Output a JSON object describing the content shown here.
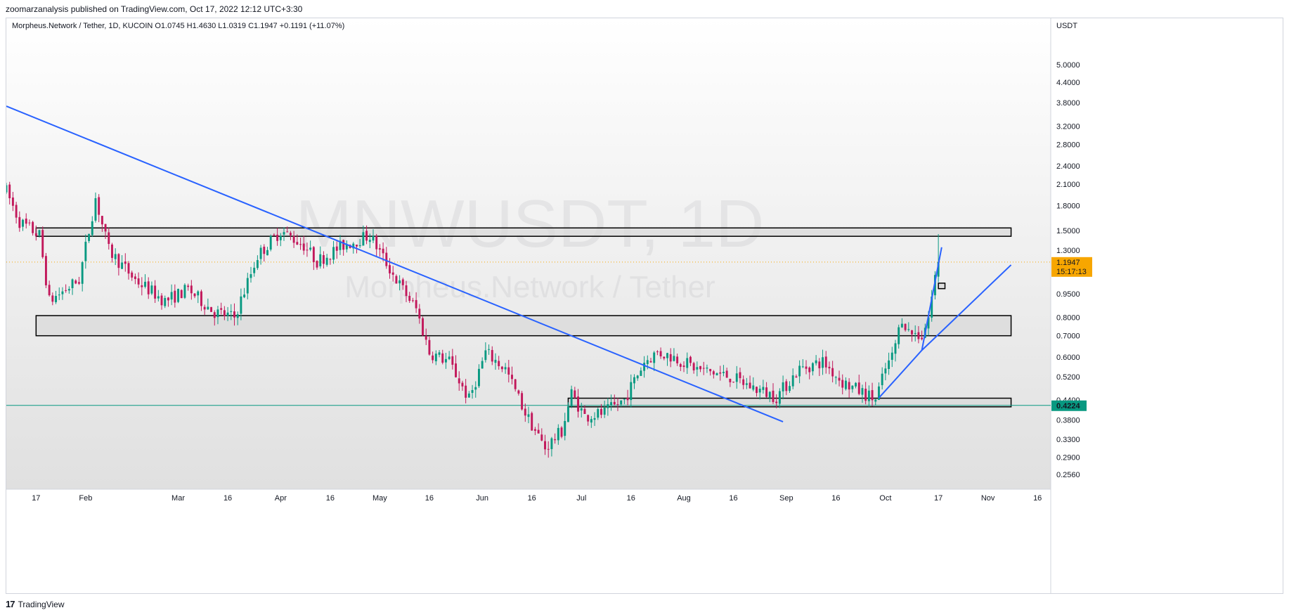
{
  "header": {
    "text": "zoomarzanalysis published on TradingView.com, Oct 17, 2022 12:12 UTC+3:30"
  },
  "legend": {
    "text": "Morpheus.Network / Tether, 1D, KUCOIN  O1.0745  H1.4630  L1.0319  C1.1947  +0.1191 (+11.07%)"
  },
  "watermark": {
    "symbol": "MNWUSDT, 1D",
    "name": "Morpheus.Network / Tether"
  },
  "footer": {
    "logo": "17",
    "brand": "TradingView"
  },
  "price_tags": {
    "last": {
      "value": "1.1947",
      "countdown": "15:17:13",
      "color": "#f7a600"
    },
    "line": {
      "value": "0.4224",
      "color": "#089981"
    }
  },
  "colors": {
    "up": "#089981",
    "down": "#c2185b",
    "trendline": "#2962ff",
    "zone_fill": "#d9d9d9"
  },
  "chart_data": {
    "type": "candlestick",
    "currency": "USDT",
    "scale": "log",
    "ylim": [
      0.23,
      7.0
    ],
    "y_ticks": [
      5.0,
      4.4,
      3.8,
      3.2,
      2.8,
      2.4,
      2.1,
      1.8,
      1.5,
      1.3,
      0.95,
      0.8,
      0.7,
      0.6,
      0.52,
      0.44,
      0.38,
      0.33,
      0.29,
      0.256
    ],
    "y_tick_labels": [
      "5.0000",
      "4.4000",
      "3.8000",
      "3.2000",
      "2.8000",
      "2.4000",
      "2.1000",
      "1.8000",
      "1.5000",
      "1.3000",
      "0.9500",
      "0.8000",
      "0.7000",
      "0.6000",
      "0.5200",
      "0.4400",
      "0.3800",
      "0.3300",
      "0.2900",
      "0.2560"
    ],
    "x_range": [
      "2022-01-08",
      "2022-11-20"
    ],
    "x_ticks": [
      {
        "date": "2022-01-17",
        "label": "17"
      },
      {
        "date": "2022-02-01",
        "label": "Feb"
      },
      {
        "date": "2022-03-01",
        "label": "Mar"
      },
      {
        "date": "2022-03-16",
        "label": "16"
      },
      {
        "date": "2022-04-01",
        "label": "Apr"
      },
      {
        "date": "2022-04-16",
        "label": "16"
      },
      {
        "date": "2022-05-01",
        "label": "May"
      },
      {
        "date": "2022-05-16",
        "label": "16"
      },
      {
        "date": "2022-06-01",
        "label": "Jun"
      },
      {
        "date": "2022-06-16",
        "label": "16"
      },
      {
        "date": "2022-07-01",
        "label": "Jul"
      },
      {
        "date": "2022-07-16",
        "label": "16"
      },
      {
        "date": "2022-08-01",
        "label": "Aug"
      },
      {
        "date": "2022-08-16",
        "label": "16"
      },
      {
        "date": "2022-09-01",
        "label": "Sep"
      },
      {
        "date": "2022-09-16",
        "label": "16"
      },
      {
        "date": "2022-10-01",
        "label": "Oct"
      },
      {
        "date": "2022-10-17",
        "label": "17"
      },
      {
        "date": "2022-11-01",
        "label": "Nov"
      },
      {
        "date": "2022-11-16",
        "label": "16"
      }
    ],
    "close_path": [
      [
        "2022-01-08",
        2.0
      ],
      [
        "2022-01-12",
        1.6
      ],
      [
        "2022-01-18",
        1.45
      ],
      [
        "2022-01-21",
        0.9
      ],
      [
        "2022-01-30",
        1.05
      ],
      [
        "2022-02-04",
        1.9
      ],
      [
        "2022-02-08",
        1.3
      ],
      [
        "2022-02-16",
        1.05
      ],
      [
        "2022-02-25",
        0.9
      ],
      [
        "2022-03-04",
        0.98
      ],
      [
        "2022-03-12",
        0.83
      ],
      [
        "2022-03-18",
        0.8
      ],
      [
        "2022-03-25",
        1.25
      ],
      [
        "2022-04-01",
        1.5
      ],
      [
        "2022-04-08",
        1.35
      ],
      [
        "2022-04-12",
        1.2
      ],
      [
        "2022-04-20",
        1.35
      ],
      [
        "2022-04-28",
        1.45
      ],
      [
        "2022-05-06",
        1.05
      ],
      [
        "2022-05-12",
        0.85
      ],
      [
        "2022-05-16",
        0.62
      ],
      [
        "2022-05-22",
        0.58
      ],
      [
        "2022-05-28",
        0.44
      ],
      [
        "2022-06-02",
        0.62
      ],
      [
        "2022-06-08",
        0.55
      ],
      [
        "2022-06-14",
        0.4
      ],
      [
        "2022-06-20",
        0.31
      ],
      [
        "2022-06-25",
        0.35
      ],
      [
        "2022-06-28",
        0.46
      ],
      [
        "2022-07-02",
        0.39
      ],
      [
        "2022-07-08",
        0.4
      ],
      [
        "2022-07-14",
        0.44
      ],
      [
        "2022-07-20",
        0.58
      ],
      [
        "2022-07-24",
        0.62
      ],
      [
        "2022-07-29",
        0.6
      ],
      [
        "2022-08-05",
        0.55
      ],
      [
        "2022-08-15",
        0.52
      ],
      [
        "2022-08-22",
        0.48
      ],
      [
        "2022-08-29",
        0.45
      ],
      [
        "2022-09-05",
        0.55
      ],
      [
        "2022-09-12",
        0.58
      ],
      [
        "2022-09-18",
        0.5
      ],
      [
        "2022-09-28",
        0.44
      ],
      [
        "2022-10-01",
        0.55
      ],
      [
        "2022-10-03",
        0.6
      ],
      [
        "2022-10-06",
        0.8
      ],
      [
        "2022-10-08",
        0.72
      ],
      [
        "2022-10-12",
        0.7
      ],
      [
        "2022-10-14",
        0.8
      ],
      [
        "2022-10-16",
        1.07
      ],
      [
        "2022-10-17",
        1.1947
      ]
    ],
    "last_candle": {
      "date": "2022-10-17",
      "open": 1.0745,
      "high": 1.463,
      "low": 1.0319,
      "close": 1.1947
    },
    "zones": [
      {
        "x_start": "2022-01-17",
        "x_end": "2022-11-08",
        "low": 1.44,
        "high": 1.53
      },
      {
        "x_start": "2022-01-17",
        "x_end": "2022-11-08",
        "low": 0.7,
        "high": 0.81
      },
      {
        "x_start": "2022-06-27",
        "x_end": "2022-11-08",
        "low": 0.418,
        "high": 0.445
      },
      {
        "x_start": "2022-10-17",
        "x_end": "2022-10-19",
        "low": 0.985,
        "high": 1.025
      }
    ],
    "trendlines": [
      {
        "x1": "2022-01-08",
        "y1": 3.7,
        "x2": "2022-08-31",
        "y2": 0.375
      },
      {
        "x1": "2022-09-29",
        "y1": 0.446,
        "x2": "2022-10-12",
        "y2": 0.63
      },
      {
        "x1": "2022-10-12",
        "y1": 0.63,
        "x2": "2022-11-08",
        "y2": 1.17
      },
      {
        "x1": "2022-10-12",
        "y1": 0.63,
        "x2": "2022-10-18",
        "y2": 1.33
      }
    ],
    "horizontal_line": 0.4224,
    "last_price_line": 1.1947
  }
}
